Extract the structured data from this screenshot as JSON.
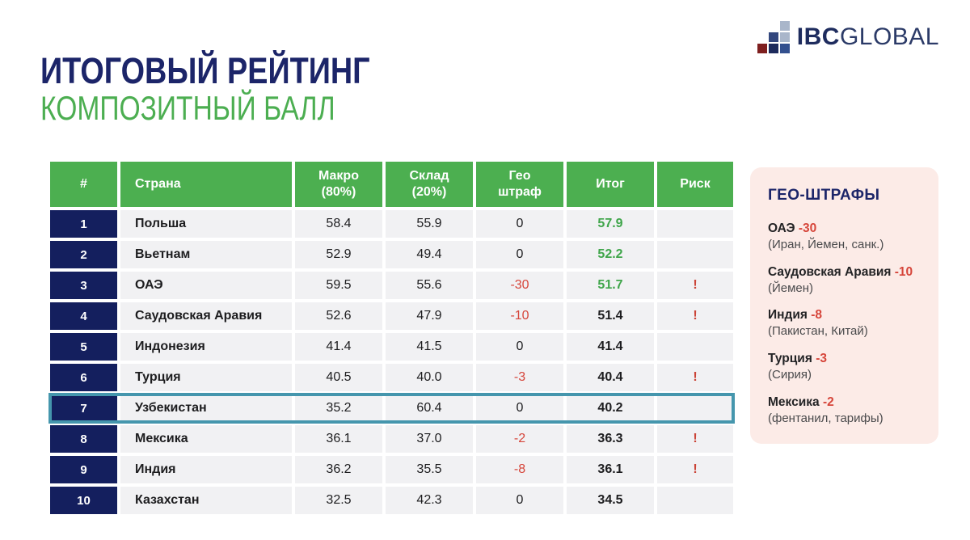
{
  "header": {
    "title": "ИТОГОВЫЙ РЕЙТИНГ",
    "subtitle": "КОМПОЗИТНЫЙ БАЛЛ",
    "logo": {
      "text_bold": "IBC",
      "text_light": "GLOBAL"
    }
  },
  "colors": {
    "title_navy": "#1c2569",
    "accent_green": "#4caf50",
    "rank_navy": "#141f5e",
    "penalty_red": "#d6453a",
    "risk_red": "#cb4437",
    "total_green": "#3fa54a",
    "row_gray": "#f1f1f3",
    "highlight_teal": "#4596ad",
    "panel_pink": "#fcebe7",
    "logo_squares": [
      "#a9b6ca",
      "#33477e",
      "#7e1f1f",
      "#1d2b5c",
      "#33508e"
    ]
  },
  "table": {
    "columns": [
      "#",
      "Страна",
      "Макро\n(80%)",
      "Склад\n(20%)",
      "Гео\nштраф",
      "Итог",
      "Риск"
    ],
    "rows": [
      {
        "rank": "1",
        "country": "Польша",
        "macro": "58.4",
        "warehouse": "55.9",
        "geo": "0",
        "total": "57.9",
        "total_variant": "green",
        "risk": ""
      },
      {
        "rank": "2",
        "country": "Вьетнам",
        "macro": "52.9",
        "warehouse": "49.4",
        "geo": "0",
        "total": "52.2",
        "total_variant": "green",
        "risk": ""
      },
      {
        "rank": "3",
        "country": "ОАЭ",
        "macro": "59.5",
        "warehouse": "55.6",
        "geo": "-30",
        "geo_variant": "neg",
        "total": "51.7",
        "total_variant": "green",
        "risk": "!"
      },
      {
        "rank": "4",
        "country": "Саудовская Аравия",
        "macro": "52.6",
        "warehouse": "47.9",
        "geo": "-10",
        "geo_variant": "neg",
        "total": "51.4",
        "risk": "!"
      },
      {
        "rank": "5",
        "country": "Индонезия",
        "macro": "41.4",
        "warehouse": "41.5",
        "geo": "0",
        "total": "41.4",
        "risk": ""
      },
      {
        "rank": "6",
        "country": "Турция",
        "macro": "40.5",
        "warehouse": "40.0",
        "geo": "-3",
        "geo_variant": "neg",
        "total": "40.4",
        "risk": "!"
      },
      {
        "rank": "7",
        "country": "Узбекистан",
        "macro": "35.2",
        "warehouse": "60.4",
        "geo": "0",
        "total": "40.2",
        "risk": "",
        "highlight": "true"
      },
      {
        "rank": "8",
        "country": "Мексика",
        "macro": "36.1",
        "warehouse": "37.0",
        "geo": "-2",
        "geo_variant": "neg",
        "total": "36.3",
        "risk": "!"
      },
      {
        "rank": "9",
        "country": "Индия",
        "macro": "36.2",
        "warehouse": "35.5",
        "geo": "-8",
        "geo_variant": "neg",
        "total": "36.1",
        "risk": "!"
      },
      {
        "rank": "10",
        "country": "Казахстан",
        "macro": "32.5",
        "warehouse": "42.3",
        "geo": "0",
        "total": "34.5",
        "risk": ""
      }
    ]
  },
  "geo_panel": {
    "title": "ГЕО-ШТРАФЫ",
    "items": [
      {
        "name": "ОАЭ",
        "penalty": "-30",
        "note": "(Иран, Йемен, санк.)"
      },
      {
        "name": "Саудовская Аравия",
        "penalty": "-10",
        "note": "(Йемен)"
      },
      {
        "name": "Индия",
        "penalty": "-8",
        "note": "(Пакистан, Китай)"
      },
      {
        "name": "Турция",
        "penalty": "-3",
        "note": "(Сирия)"
      },
      {
        "name": "Мексика",
        "penalty": "-2",
        "note": "(фентанил, тарифы)"
      }
    ]
  }
}
